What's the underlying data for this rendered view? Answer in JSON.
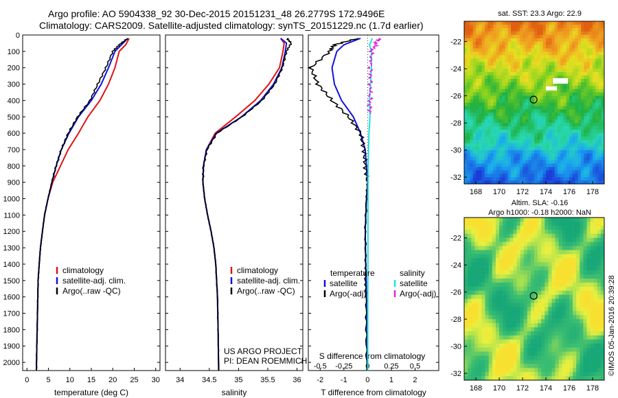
{
  "header": {
    "line1": "Argo profile: AO 5904338_92 30-Dec-2015 20151231_48 26.2779S 172.9496E",
    "line2": "Climatology: CARS2009. Satellite-adjusted climatology: synTS_20151229.nc (1.7d earlier)"
  },
  "colors": {
    "climatology": "#e01010",
    "satellite": "#1010e0",
    "argo": "#000000",
    "sal_satellite": "#20e0e0",
    "sal_argo": "#e020e0"
  },
  "credits": {
    "project": "US ARGO PROJECT",
    "pi": "PI: DEAN ROEMMICH"
  },
  "watermark": "©IMOS 05-Jan-2016 20:39:28",
  "depth_ticks": [
    0,
    100,
    200,
    300,
    400,
    500,
    600,
    700,
    800,
    900,
    1000,
    1100,
    1200,
    1300,
    1400,
    1500,
    1600,
    1700,
    1800,
    1900,
    2000
  ],
  "chart_data": [
    {
      "type": "line",
      "xlabel": "temperature (deg C)",
      "xlim": [
        -1,
        31
      ],
      "ylim": [
        2050,
        0
      ],
      "xticks": [
        0,
        5,
        10,
        15,
        20,
        25,
        30
      ],
      "legend": [
        "climatology",
        "satellite-adj. clim.",
        "Argo(..raw -QC)"
      ],
      "series": [
        {
          "name": "climatology",
          "color": "climatology",
          "x": [
            23.8,
            23.0,
            21.5,
            20.5,
            19.0,
            17.0,
            14.2,
            12.0,
            9.6,
            7.8,
            6.0,
            4.9,
            4.1,
            3.6,
            3.15,
            2.85,
            2.6,
            2.45,
            2.3,
            2.2
          ],
          "y": [
            20,
            60,
            100,
            200,
            300,
            400,
            500,
            600,
            700,
            800,
            900,
            1000,
            1100,
            1200,
            1300,
            1400,
            1500,
            1700,
            1900,
            2050
          ]
        },
        {
          "name": "satellite-adj. clim.",
          "color": "satellite",
          "x": [
            23.5,
            22.0,
            20.5,
            19.0,
            17.3,
            15.0,
            12.0,
            9.8,
            8.0,
            6.8,
            5.8,
            4.9,
            4.1,
            3.6,
            3.15,
            2.85,
            2.6,
            2.45,
            2.3,
            2.2
          ],
          "y": [
            20,
            60,
            100,
            200,
            300,
            400,
            500,
            600,
            700,
            800,
            900,
            1000,
            1100,
            1200,
            1300,
            1400,
            1500,
            1700,
            1900,
            2050
          ]
        },
        {
          "name": "Argo(..raw -QC)",
          "color": "argo",
          "x": [
            23.5,
            21.5,
            20.0,
            18.4,
            16.5,
            14.7,
            11.8,
            9.6,
            8.0,
            6.8,
            5.8,
            4.9,
            4.1,
            3.6,
            3.15,
            2.85,
            2.6,
            2.45,
            2.3,
            2.2
          ],
          "y": [
            20,
            60,
            100,
            200,
            300,
            400,
            500,
            600,
            700,
            800,
            900,
            1000,
            1100,
            1200,
            1300,
            1400,
            1500,
            1700,
            1900,
            2050
          ]
        }
      ]
    },
    {
      "type": "line",
      "xlabel": "salinity",
      "xlim": [
        33.75,
        36.1
      ],
      "ylim": [
        2050,
        0
      ],
      "xticks": [
        34,
        34.5,
        35,
        35.5,
        36
      ],
      "xticklabels": [
        "34",
        "34.5",
        "35",
        "35.5",
        "36"
      ],
      "legend": [
        "climatology",
        "satellite-adj. clim.",
        "Argo(..raw -QC)"
      ],
      "series": [
        {
          "name": "climatology",
          "color": "climatology",
          "x": [
            35.72,
            35.78,
            35.76,
            35.7,
            35.52,
            35.28,
            34.95,
            34.6,
            34.45,
            34.4,
            34.39,
            34.42,
            34.47,
            34.53,
            34.58,
            34.61,
            34.64,
            34.65,
            34.66
          ],
          "y": [
            20,
            50,
            100,
            200,
            300,
            400,
            500,
            600,
            700,
            800,
            900,
            1000,
            1100,
            1200,
            1300,
            1400,
            1600,
            1800,
            2050
          ]
        },
        {
          "name": "satellite-adj. clim.",
          "color": "satellite",
          "x": [
            35.72,
            35.82,
            35.8,
            35.74,
            35.6,
            35.38,
            35.05,
            34.62,
            34.45,
            34.4,
            34.39,
            34.42,
            34.47,
            34.53,
            34.58,
            34.61,
            34.64,
            34.65,
            34.66
          ],
          "y": [
            20,
            50,
            100,
            200,
            300,
            400,
            500,
            600,
            700,
            800,
            900,
            1000,
            1100,
            1200,
            1300,
            1400,
            1600,
            1800,
            2050
          ]
        },
        {
          "name": "Argo(..raw -QC)",
          "color": "argo",
          "x": [
            35.83,
            35.9,
            35.82,
            35.75,
            35.62,
            35.4,
            35.06,
            34.63,
            34.46,
            34.4,
            34.39,
            34.42,
            34.47,
            34.53,
            34.58,
            34.61,
            34.64,
            34.65,
            34.66
          ],
          "y": [
            20,
            50,
            100,
            200,
            300,
            400,
            500,
            600,
            700,
            800,
            900,
            1000,
            1100,
            1200,
            1300,
            1400,
            1600,
            1800,
            2050
          ]
        }
      ]
    },
    {
      "type": "line",
      "xlabel": "T difference from climatology",
      "xlabel2": "S difference from climatology",
      "xlim": [
        -2.5,
        3.0
      ],
      "ylim": [
        2050,
        0
      ],
      "xticks": [
        -2,
        -1,
        0,
        1,
        2
      ],
      "xticks_top": [
        -0.5,
        -0.25,
        0,
        0.25,
        0.5
      ],
      "xticklabels_top": [
        "-0.5",
        "-0.25",
        "0",
        "0.25",
        "0.5"
      ],
      "s_scale": 4,
      "legend_temperature_title": "temperature",
      "legend_salinity_title": "salinity",
      "legend_temperature": [
        "satellite",
        "Argo(-adj)"
      ],
      "legend_salinity": [
        "satellite",
        "Argo(-adj)"
      ],
      "series": [
        {
          "name": "T satellite",
          "color": "satellite",
          "x": [
            -0.3,
            -1.0,
            -1.3,
            -1.5,
            -1.4,
            -1.1,
            -0.6,
            -0.3,
            -0.1,
            -0.05,
            0.0,
            -0.05,
            -0.1,
            -0.08,
            -0.06,
            -0.05,
            -0.03,
            -0.02
          ],
          "y": [
            20,
            60,
            100,
            200,
            300,
            400,
            500,
            600,
            700,
            800,
            900,
            1000,
            1200,
            1400,
            1500,
            1600,
            1800,
            2050
          ]
        },
        {
          "name": "T Argo(-adj)",
          "color": "argo",
          "x": [
            -0.4,
            -1.4,
            -1.6,
            -2.4,
            -2.1,
            -1.5,
            -0.8,
            -0.3,
            -0.15,
            -0.1,
            0.0,
            -0.05,
            -0.1,
            -0.08,
            -0.1,
            -0.06,
            -0.06,
            -0.04
          ],
          "y": [
            20,
            60,
            100,
            200,
            300,
            400,
            500,
            600,
            700,
            800,
            900,
            1000,
            1200,
            1400,
            1500,
            1600,
            1800,
            2050
          ]
        },
        {
          "name": "S satellite",
          "color": "sal_satellite",
          "x": [
            0.05,
            0.02,
            0.04,
            0.04,
            0.03,
            0.02,
            0.025,
            0.015,
            0.01,
            0.005,
            0.004,
            0.003,
            0.002,
            0.002
          ],
          "y": [
            20,
            60,
            100,
            200,
            300,
            400,
            500,
            600,
            700,
            800,
            1000,
            1400,
            1800,
            2050
          ]
        },
        {
          "name": "S Argo(-adj)",
          "color": "sal_argo",
          "x": [
            0.12,
            0.08,
            0.04,
            0.03,
            0.03,
            0.025,
            0.025
          ],
          "y": [
            20,
            60,
            100,
            200,
            300,
            400,
            480
          ]
        }
      ]
    },
    {
      "type": "heatmap",
      "title": "sat. SST: 23.3 Argo: 22.9",
      "xlim": [
        167,
        179
      ],
      "ylim": [
        -32.5,
        -20.5
      ],
      "xticks": [
        168,
        170,
        172,
        174,
        176,
        178
      ],
      "yticks": [
        -22,
        -24,
        -26,
        -28,
        -30,
        -32
      ],
      "marker": [
        172.95,
        -26.28
      ]
    },
    {
      "type": "heatmap",
      "title": "Altim. SLA: -0.16",
      "subtitle": "Argo h1000: -0.18 h2000: NaN",
      "xlim": [
        167,
        179
      ],
      "ylim": [
        -32.5,
        -20.5
      ],
      "xticks": [
        168,
        170,
        172,
        174,
        176,
        178
      ],
      "yticks": [
        -22,
        -24,
        -26,
        -28,
        -30,
        -32
      ],
      "marker": [
        172.95,
        -26.28
      ]
    }
  ]
}
